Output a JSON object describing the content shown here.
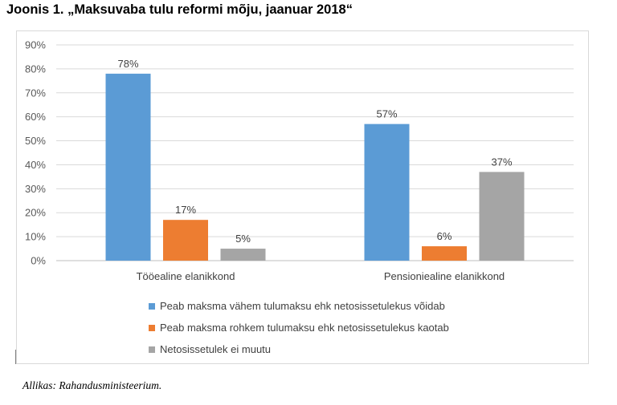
{
  "figure": {
    "title": "Joonis 1. „Maksuvaba tulu reformi mõju, jaanuar 2018“",
    "source": "Allikas: Rahandusministeerium."
  },
  "chart_data": {
    "type": "bar",
    "title": "",
    "categories": [
      "Tööealine elanikkond",
      "Pensioniealine elanikkond"
    ],
    "series": [
      {
        "name": "Peab maksma vähem tulumaksu ehk netosissetulekus võidab",
        "values": [
          78,
          57
        ],
        "labels": [
          "78%",
          "57%"
        ],
        "color": "#5b9bd5"
      },
      {
        "name": "Peab maksma rohkem tulumaksu ehk netosissetulekus kaotab",
        "values": [
          17,
          6
        ],
        "labels": [
          "17%",
          "6%"
        ],
        "color": "#ed7d31"
      },
      {
        "name": "Netosissetulek ei muutu",
        "values": [
          5,
          37
        ],
        "labels": [
          "5%",
          "37%"
        ],
        "color": "#a5a5a5"
      }
    ],
    "yticks": [
      "0%",
      "10%",
      "20%",
      "30%",
      "40%",
      "50%",
      "60%",
      "70%",
      "80%",
      "90%"
    ],
    "ylim": [
      0,
      90
    ],
    "grid": true,
    "legend_position": "bottom",
    "xlabel": "",
    "ylabel": ""
  }
}
